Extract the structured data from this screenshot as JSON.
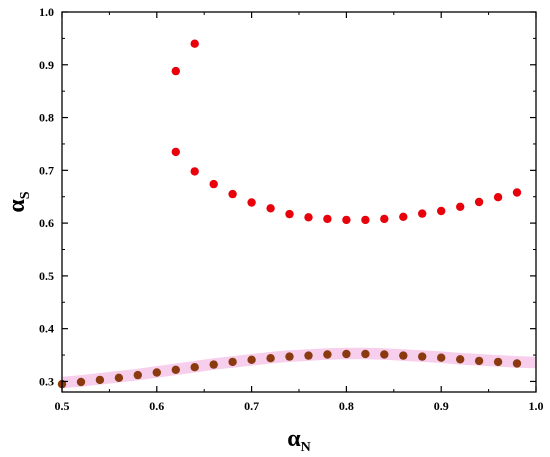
{
  "chart_data": {
    "type": "scatter",
    "title": "",
    "xlabel": {
      "main": "α",
      "sub": "N"
    },
    "ylabel": {
      "main": "α",
      "sub": "S"
    },
    "xlim": [
      0.5,
      1.0
    ],
    "ylim": [
      0.28,
      1.0
    ],
    "x_ticks": [
      "0.5",
      "0.6",
      "0.7",
      "0.8",
      "0.9",
      "1.0"
    ],
    "y_ticks": [
      "0.3",
      "0.4",
      "0.5",
      "0.6",
      "0.7",
      "0.8",
      "0.9",
      "1.0"
    ],
    "grid": false,
    "legend": "none",
    "series": [
      {
        "color": "#e8000b",
        "x": [
          0.62,
          0.64,
          0.62,
          0.64,
          0.66,
          0.68,
          0.7,
          0.72,
          0.74,
          0.76,
          0.78,
          0.8,
          0.82,
          0.84,
          0.86,
          0.88,
          0.9,
          0.92,
          0.94,
          0.96,
          0.98
        ],
        "y": [
          0.888,
          0.94,
          0.735,
          0.698,
          0.674,
          0.655,
          0.639,
          0.628,
          0.617,
          0.611,
          0.608,
          0.606,
          0.606,
          0.608,
          0.612,
          0.618,
          0.623,
          0.631,
          0.64,
          0.649,
          0.658
        ]
      },
      {
        "color": "#8b3a0f",
        "x": [
          0.5,
          0.52,
          0.54,
          0.56,
          0.58,
          0.6,
          0.62,
          0.64,
          0.66,
          0.68,
          0.7,
          0.72,
          0.74,
          0.76,
          0.78,
          0.8,
          0.82,
          0.84,
          0.86,
          0.88,
          0.9,
          0.92,
          0.94,
          0.96,
          0.98
        ],
        "y": [
          0.295,
          0.299,
          0.303,
          0.307,
          0.312,
          0.317,
          0.322,
          0.327,
          0.332,
          0.337,
          0.341,
          0.344,
          0.347,
          0.349,
          0.351,
          0.352,
          0.352,
          0.351,
          0.349,
          0.347,
          0.345,
          0.342,
          0.339,
          0.337,
          0.334
        ]
      }
    ],
    "band": {
      "color": "#f6c7ea",
      "x": [
        0.5,
        0.52,
        0.54,
        0.56,
        0.58,
        0.6,
        0.62,
        0.64,
        0.66,
        0.68,
        0.7,
        0.72,
        0.74,
        0.76,
        0.78,
        0.8,
        0.82,
        0.84,
        0.86,
        0.88,
        0.9,
        0.92,
        0.94,
        0.96,
        0.98,
        1.0
      ],
      "y": [
        0.298,
        0.301,
        0.305,
        0.309,
        0.313,
        0.318,
        0.323,
        0.328,
        0.333,
        0.337,
        0.341,
        0.345,
        0.348,
        0.35,
        0.352,
        0.353,
        0.353,
        0.352,
        0.35,
        0.348,
        0.346,
        0.343,
        0.341,
        0.339,
        0.337,
        0.336
      ],
      "half_width": 0.011
    }
  }
}
